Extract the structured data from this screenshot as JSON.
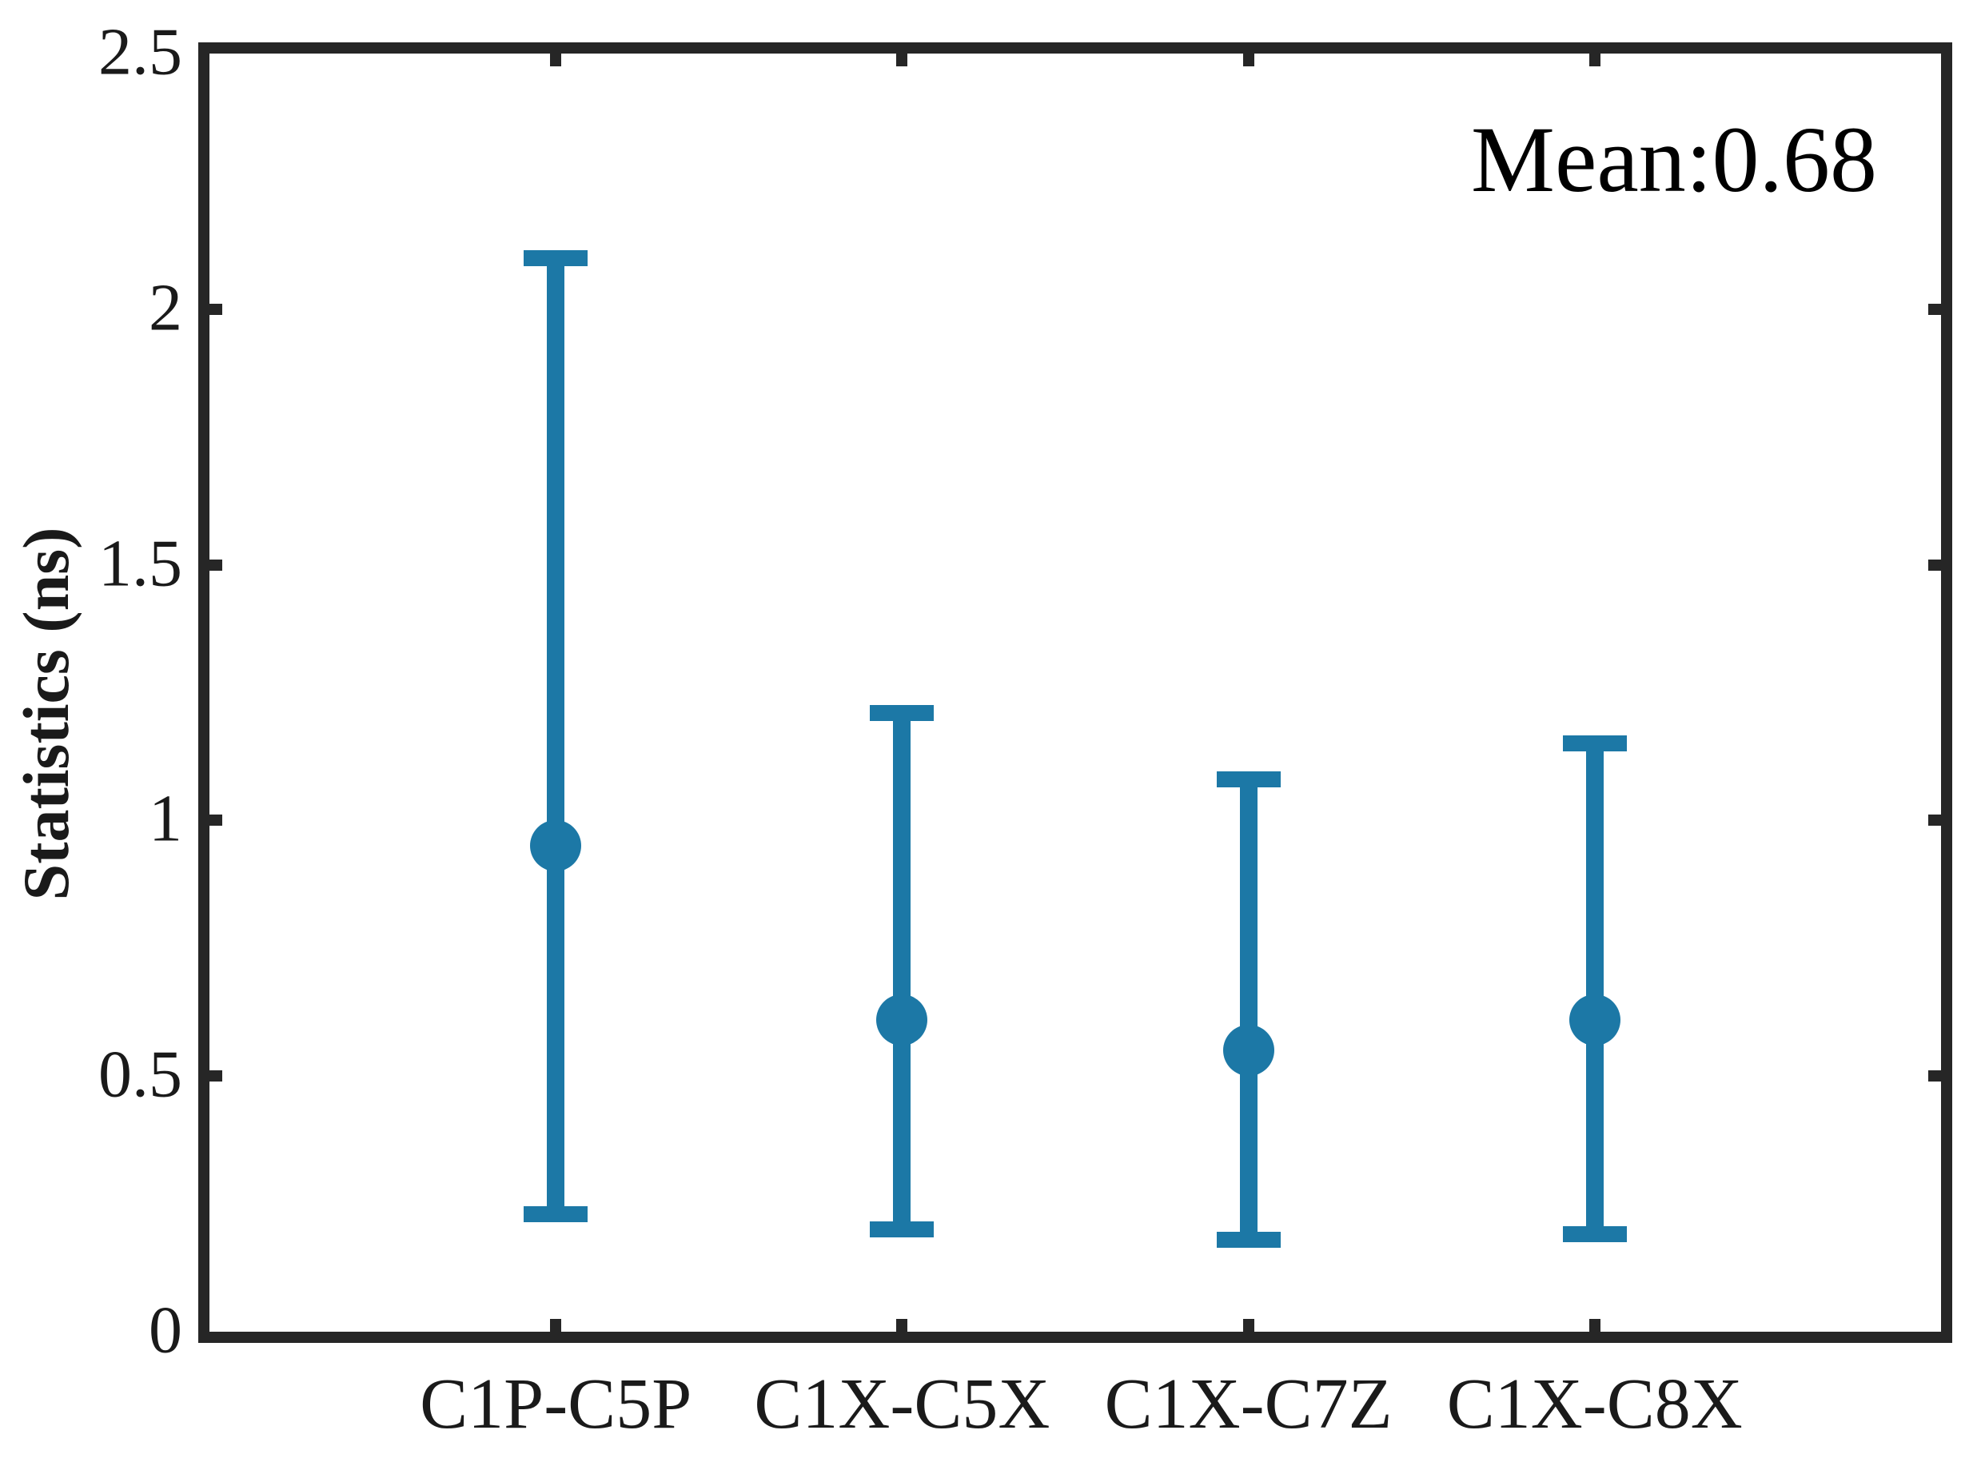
{
  "chart_data": {
    "type": "errorbar",
    "title": "",
    "ylabel": "Statistics (ns)",
    "xlabel": "",
    "categories": [
      "C1P-C5P",
      "C1X-C5X",
      "C1X-C7Z",
      "C1X-C8X"
    ],
    "series": [
      {
        "name": "statistics-errorbars",
        "mid": [
          0.95,
          0.61,
          0.55,
          0.61
        ],
        "lo": [
          0.23,
          0.2,
          0.18,
          0.19
        ],
        "hi": [
          2.1,
          1.21,
          1.08,
          1.15
        ]
      }
    ],
    "ylim": [
      0,
      2.5
    ],
    "yticks": [
      0,
      0.5,
      1,
      1.5,
      2,
      2.5
    ],
    "ytick_labels": [
      "0",
      "0.5",
      "1",
      "1.5",
      "2",
      "2.5"
    ],
    "annotation": "Mean:0.68",
    "mean": 0.68,
    "colors": {
      "marker": "#1c78a6",
      "axis": "#262626",
      "text": "#1a1a1a"
    },
    "grid": false,
    "legend": null,
    "tick_direction": "in",
    "box": true
  }
}
